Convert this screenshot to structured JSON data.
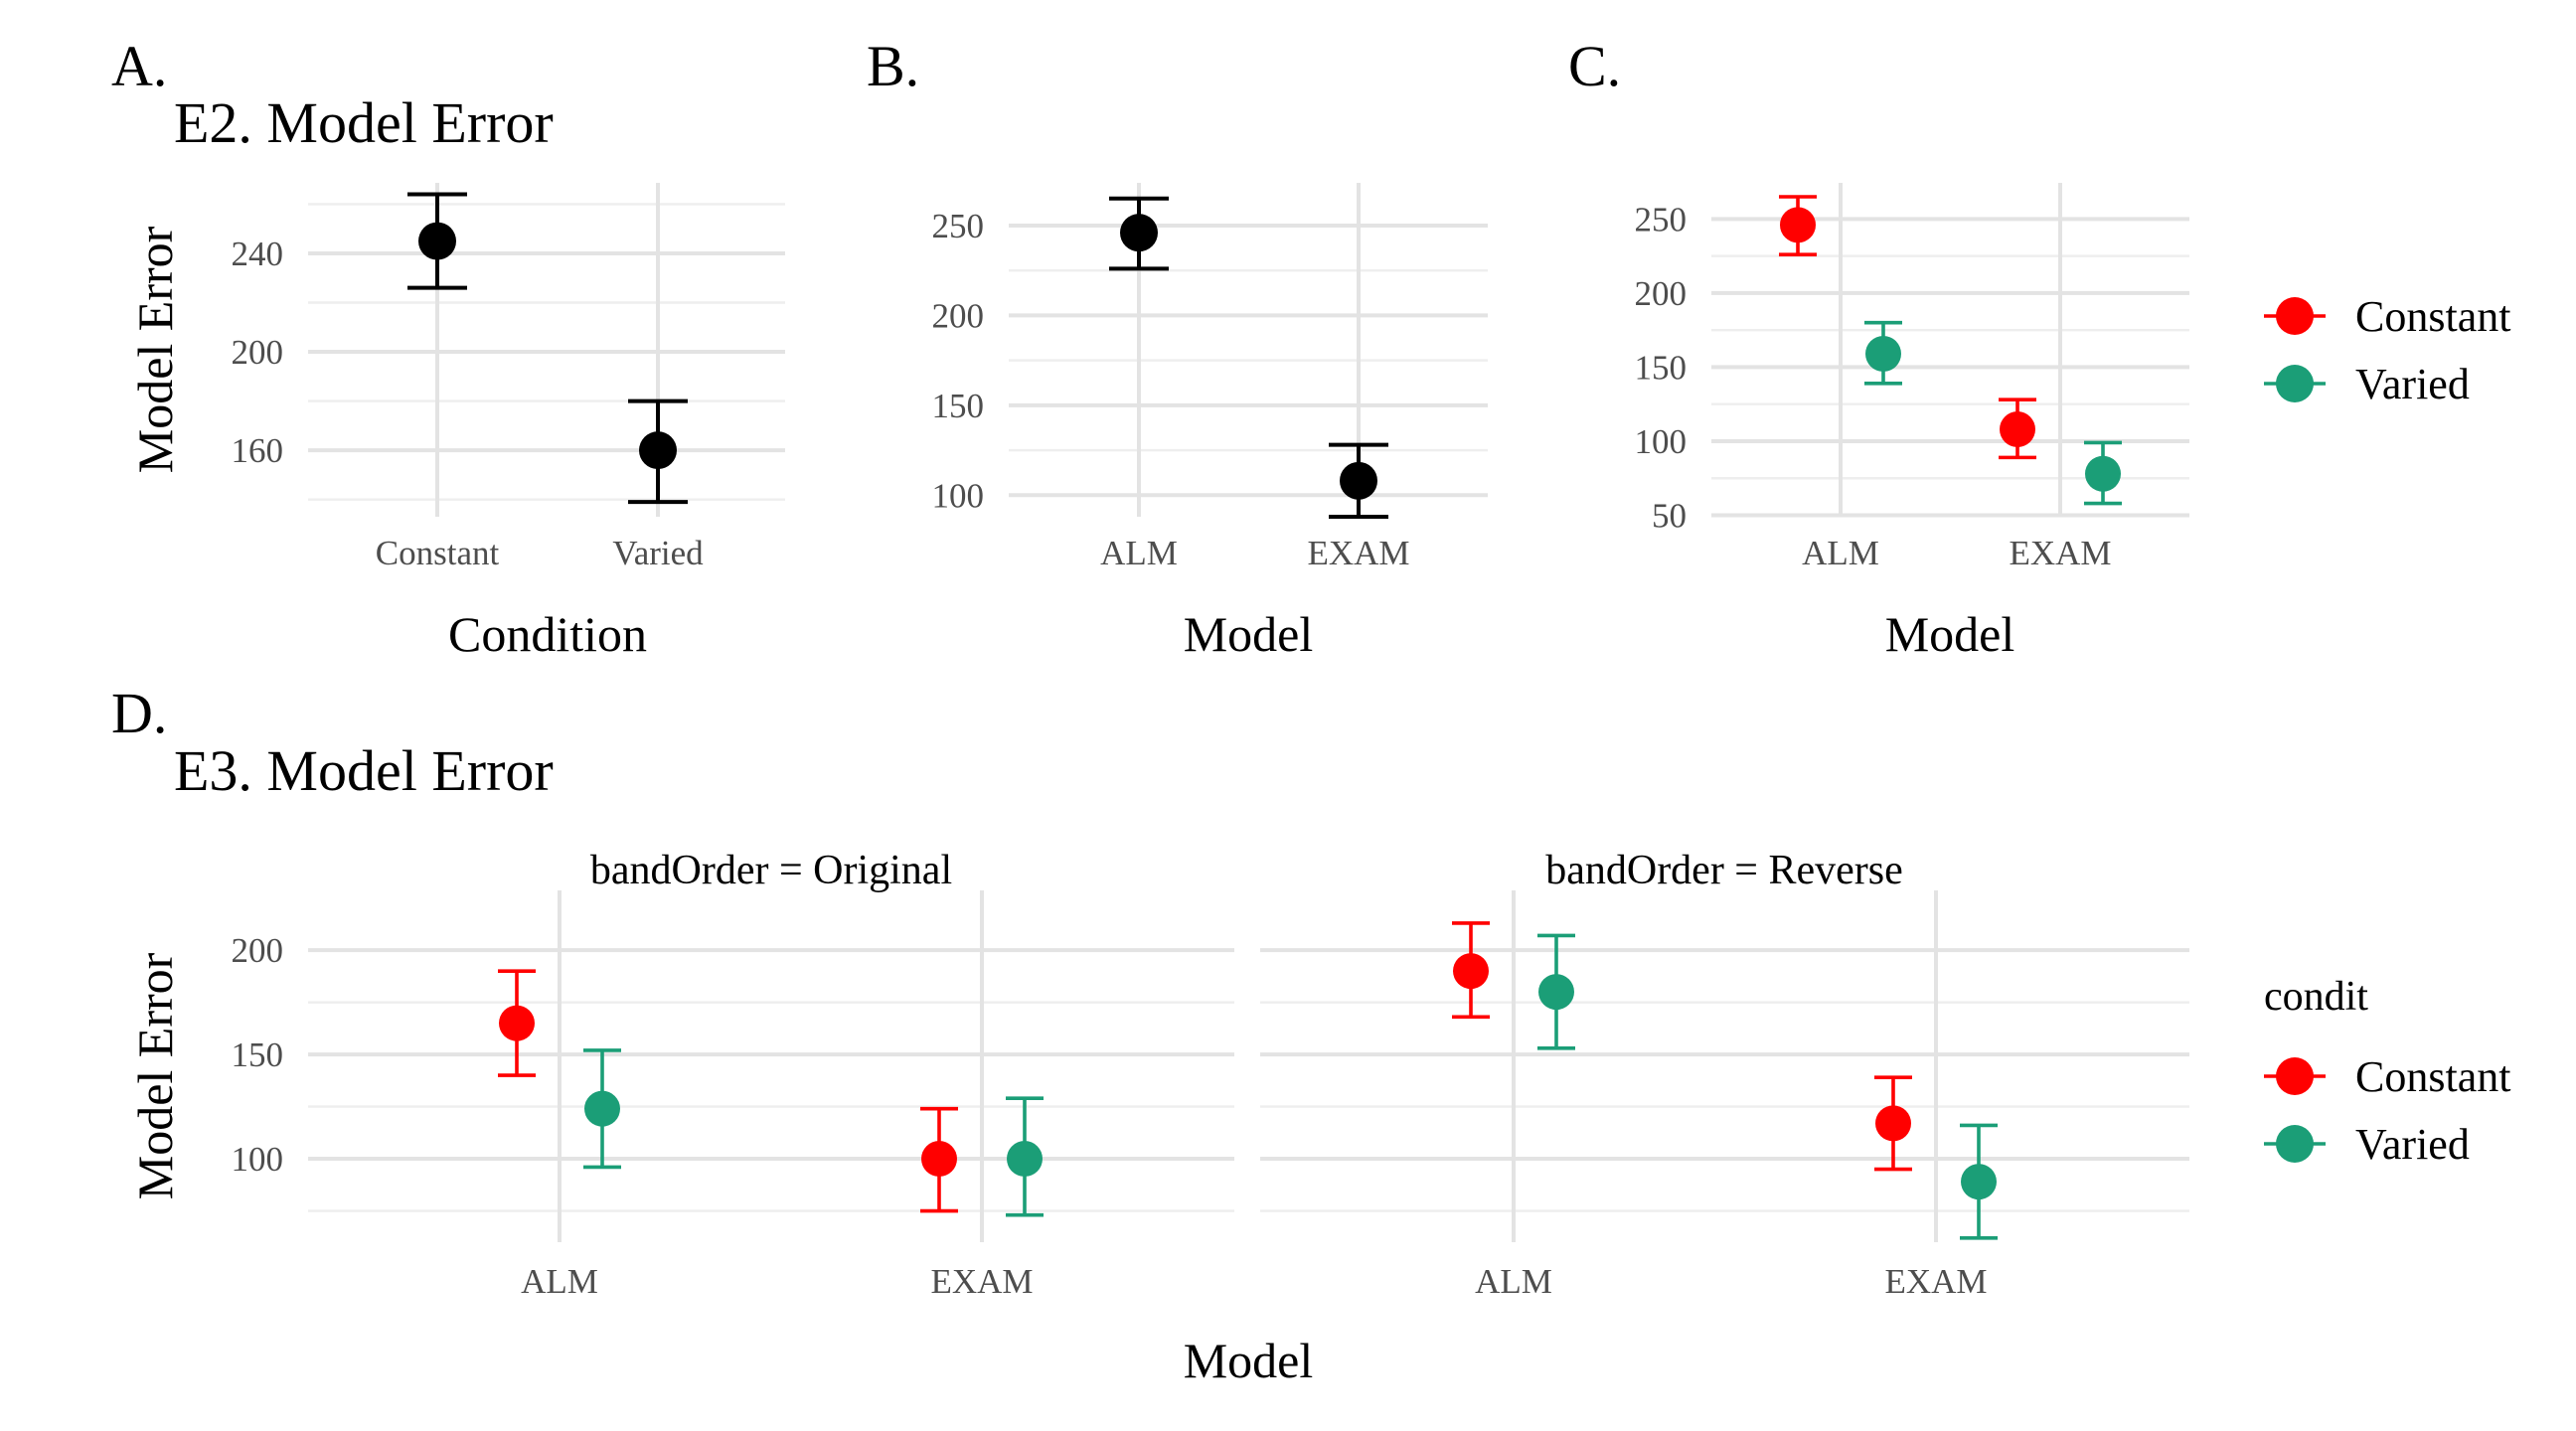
{
  "colors": {
    "constant": "#ff0000",
    "varied": "#1b9e77",
    "single": "#000000"
  },
  "chart_data": [
    {
      "id": "A",
      "type": "scatter",
      "panel_tag": "A.",
      "title": "E2. Model Error",
      "xlabel": "Condition",
      "ylabel": "Model Error",
      "categories": [
        "Constant",
        "Varied"
      ],
      "ylim": [
        133,
        263
      ],
      "yticks": [
        160,
        200,
        240
      ],
      "grid": true,
      "series": [
        {
          "color_key": "single",
          "values": [
            245,
            160
          ],
          "lower": [
            226,
            139
          ],
          "upper": [
            264,
            180
          ]
        }
      ]
    },
    {
      "id": "B",
      "type": "scatter",
      "panel_tag": "B.",
      "xlabel": "Model",
      "ylabel": "",
      "categories": [
        "ALM",
        "EXAM"
      ],
      "ylim": [
        88,
        266
      ],
      "yticks": [
        100,
        150,
        200,
        250
      ],
      "grid": true,
      "series": [
        {
          "color_key": "single",
          "values": [
            246,
            108
          ],
          "lower": [
            226,
            88
          ],
          "upper": [
            265,
            128
          ]
        }
      ]
    },
    {
      "id": "C",
      "type": "scatter",
      "panel_tag": "C.",
      "xlabel": "Model",
      "ylabel": "",
      "categories": [
        "ALM",
        "EXAM"
      ],
      "ylim": [
        49,
        265
      ],
      "yticks": [
        50,
        100,
        150,
        200,
        250
      ],
      "grid": true,
      "legend": "right",
      "series": [
        {
          "name": "Constant",
          "color_key": "constant",
          "values": [
            246,
            108
          ],
          "lower": [
            226,
            89
          ],
          "upper": [
            265,
            128
          ]
        },
        {
          "name": "Varied",
          "color_key": "varied",
          "values": [
            159,
            78
          ],
          "lower": [
            139,
            58
          ],
          "upper": [
            180,
            99
          ]
        }
      ]
    },
    {
      "id": "D",
      "type": "scatter",
      "panel_tag": "D.",
      "title": "E3. Model Error",
      "xlabel": "Model",
      "ylabel": "Model Error",
      "legend_title": "condit",
      "legend": "right",
      "ylim": [
        60,
        222
      ],
      "yticks": [
        100,
        150,
        200
      ],
      "grid": true,
      "facets": [
        {
          "strip": "bandOrder = Original",
          "categories": [
            "ALM",
            "EXAM"
          ],
          "series": [
            {
              "name": "Constant",
              "color_key": "constant",
              "values": [
                165,
                100
              ],
              "lower": [
                140,
                75
              ],
              "upper": [
                190,
                124
              ]
            },
            {
              "name": "Varied",
              "color_key": "varied",
              "values": [
                124,
                100
              ],
              "lower": [
                96,
                73
              ],
              "upper": [
                152,
                129
              ]
            }
          ]
        },
        {
          "strip": "bandOrder = Reverse",
          "categories": [
            "ALM",
            "EXAM"
          ],
          "series": [
            {
              "name": "Constant",
              "color_key": "constant",
              "values": [
                190,
                117
              ],
              "lower": [
                168,
                95
              ],
              "upper": [
                213,
                139
              ]
            },
            {
              "name": "Varied",
              "color_key": "varied",
              "values": [
                180,
                89
              ],
              "lower": [
                153,
                62
              ],
              "upper": [
                207,
                116
              ]
            }
          ]
        }
      ],
      "legend_items": [
        "Constant",
        "Varied"
      ]
    }
  ]
}
